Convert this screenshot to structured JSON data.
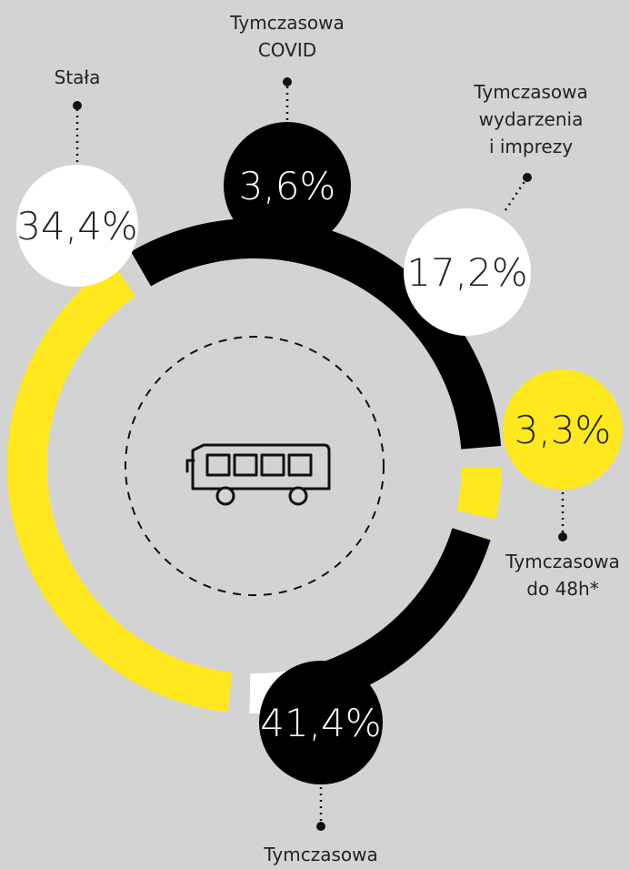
{
  "chart_data": {
    "type": "pie",
    "slices": [
      {
        "value": "34,4%",
        "pct": 34.4,
        "label": [
          "Stała"
        ],
        "color": "#000000",
        "bubble": "#ffffff",
        "text": "#222222"
      },
      {
        "value": "3,6%",
        "pct": 3.6,
        "label": [
          "Tymczasowa",
          "COVID"
        ],
        "color": "#ffe81e",
        "bubble": "#000000",
        "text": "#ffffff"
      },
      {
        "value": "17,2%",
        "pct": 17.2,
        "label": [
          "Tymczasowa",
          "wydarzenia",
          "i imprezy"
        ],
        "color": "#000000",
        "bubble": "#ffffff",
        "text": "#222222"
      },
      {
        "value": "3,3%",
        "pct": 3.3,
        "label": [
          "Tymczasowa",
          "do 48h*"
        ],
        "color": "#ffffff",
        "bubble": "#ffe81e",
        "text": "#222222"
      },
      {
        "value": "41,4%",
        "pct": 41.4,
        "label": [
          "Tymczasowa"
        ],
        "color": "#ffe81e",
        "bubble": "#000000",
        "text": "#ffffff"
      }
    ],
    "center_icon": "bus-icon"
  }
}
